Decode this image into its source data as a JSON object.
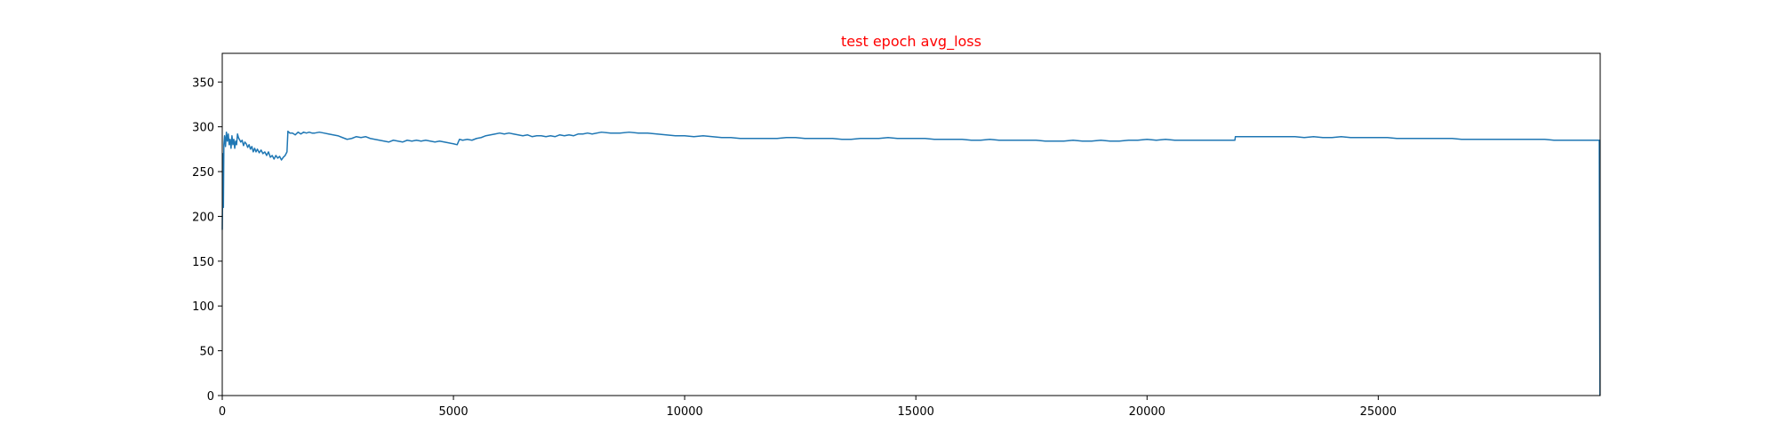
{
  "chart_data": {
    "type": "line",
    "title": "test epoch avg_loss",
    "title_color": "#ff0000",
    "line_color": "#1f77b4",
    "xlabel": "",
    "ylabel": "",
    "xlim": [
      0,
      29800
    ],
    "ylim": [
      0,
      382
    ],
    "xticks": [
      0,
      5000,
      10000,
      15000,
      20000,
      25000
    ],
    "yticks": [
      0,
      50,
      100,
      150,
      200,
      250,
      300,
      350
    ],
    "grid": false,
    "legend": false,
    "series": [
      {
        "values": [
          [
            0,
            185
          ],
          [
            8,
            225
          ],
          [
            15,
            270
          ],
          [
            25,
            210
          ],
          [
            35,
            280
          ],
          [
            50,
            290
          ],
          [
            70,
            278
          ],
          [
            90,
            294
          ],
          [
            110,
            284
          ],
          [
            130,
            292
          ],
          [
            150,
            280
          ],
          [
            170,
            286
          ],
          [
            190,
            276
          ],
          [
            210,
            290
          ],
          [
            230,
            280
          ],
          [
            250,
            286
          ],
          [
            270,
            276
          ],
          [
            290,
            284
          ],
          [
            310,
            280
          ],
          [
            330,
            292
          ],
          [
            350,
            288
          ],
          [
            370,
            286
          ],
          [
            400,
            283
          ],
          [
            430,
            285
          ],
          [
            460,
            279
          ],
          [
            490,
            283
          ],
          [
            520,
            281
          ],
          [
            550,
            277
          ],
          [
            580,
            280
          ],
          [
            610,
            275
          ],
          [
            640,
            278
          ],
          [
            670,
            272
          ],
          [
            700,
            276
          ],
          [
            730,
            272
          ],
          [
            760,
            275
          ],
          [
            800,
            271
          ],
          [
            840,
            274
          ],
          [
            880,
            270
          ],
          [
            920,
            272
          ],
          [
            960,
            268
          ],
          [
            1000,
            272
          ],
          [
            1040,
            266
          ],
          [
            1080,
            268
          ],
          [
            1120,
            264
          ],
          [
            1160,
            268
          ],
          [
            1200,
            265
          ],
          [
            1240,
            267
          ],
          [
            1280,
            263
          ],
          [
            1320,
            266
          ],
          [
            1360,
            268
          ],
          [
            1400,
            272
          ],
          [
            1420,
            295
          ],
          [
            1460,
            293
          ],
          [
            1520,
            293
          ],
          [
            1580,
            291
          ],
          [
            1640,
            294
          ],
          [
            1700,
            292
          ],
          [
            1760,
            294
          ],
          [
            1820,
            293
          ],
          [
            1880,
            294
          ],
          [
            1940,
            293
          ],
          [
            2000,
            293
          ],
          [
            2100,
            294
          ],
          [
            2200,
            293
          ],
          [
            2300,
            292
          ],
          [
            2400,
            291
          ],
          [
            2500,
            290
          ],
          [
            2600,
            288
          ],
          [
            2700,
            286
          ],
          [
            2800,
            287
          ],
          [
            2900,
            289
          ],
          [
            3000,
            288
          ],
          [
            3100,
            289
          ],
          [
            3200,
            287
          ],
          [
            3300,
            286
          ],
          [
            3400,
            285
          ],
          [
            3500,
            284
          ],
          [
            3600,
            283
          ],
          [
            3700,
            285
          ],
          [
            3800,
            284
          ],
          [
            3900,
            283
          ],
          [
            4000,
            285
          ],
          [
            4100,
            284
          ],
          [
            4200,
            285
          ],
          [
            4300,
            284
          ],
          [
            4400,
            285
          ],
          [
            4500,
            284
          ],
          [
            4600,
            283
          ],
          [
            4700,
            284
          ],
          [
            4800,
            283
          ],
          [
            4900,
            282
          ],
          [
            5000,
            281
          ],
          [
            5080,
            280
          ],
          [
            5130,
            286
          ],
          [
            5200,
            285
          ],
          [
            5300,
            286
          ],
          [
            5400,
            285
          ],
          [
            5500,
            287
          ],
          [
            5600,
            288
          ],
          [
            5700,
            290
          ],
          [
            5800,
            291
          ],
          [
            5900,
            292
          ],
          [
            6000,
            293
          ],
          [
            6100,
            292
          ],
          [
            6200,
            293
          ],
          [
            6300,
            292
          ],
          [
            6400,
            291
          ],
          [
            6500,
            290
          ],
          [
            6600,
            291
          ],
          [
            6700,
            289
          ],
          [
            6800,
            290
          ],
          [
            6900,
            290
          ],
          [
            7000,
            289
          ],
          [
            7100,
            290
          ],
          [
            7200,
            289
          ],
          [
            7300,
            291
          ],
          [
            7400,
            290
          ],
          [
            7500,
            291
          ],
          [
            7600,
            290
          ],
          [
            7700,
            292
          ],
          [
            7800,
            292
          ],
          [
            7900,
            293
          ],
          [
            8000,
            292
          ],
          [
            8200,
            294
          ],
          [
            8400,
            293
          ],
          [
            8600,
            293
          ],
          [
            8800,
            294
          ],
          [
            9000,
            293
          ],
          [
            9200,
            293
          ],
          [
            9400,
            292
          ],
          [
            9600,
            291
          ],
          [
            9800,
            290
          ],
          [
            10000,
            290
          ],
          [
            10200,
            289
          ],
          [
            10400,
            290
          ],
          [
            10600,
            289
          ],
          [
            10800,
            288
          ],
          [
            11000,
            288
          ],
          [
            11200,
            287
          ],
          [
            11400,
            287
          ],
          [
            11600,
            287
          ],
          [
            11800,
            287
          ],
          [
            12000,
            287
          ],
          [
            12200,
            288
          ],
          [
            12400,
            288
          ],
          [
            12600,
            287
          ],
          [
            12800,
            287
          ],
          [
            13000,
            287
          ],
          [
            13200,
            287
          ],
          [
            13400,
            286
          ],
          [
            13600,
            286
          ],
          [
            13800,
            287
          ],
          [
            14000,
            287
          ],
          [
            14200,
            287
          ],
          [
            14400,
            288
          ],
          [
            14600,
            287
          ],
          [
            14800,
            287
          ],
          [
            15000,
            287
          ],
          [
            15200,
            287
          ],
          [
            15400,
            286
          ],
          [
            15600,
            286
          ],
          [
            15800,
            286
          ],
          [
            16000,
            286
          ],
          [
            16200,
            285
          ],
          [
            16400,
            285
          ],
          [
            16600,
            286
          ],
          [
            16800,
            285
          ],
          [
            17000,
            285
          ],
          [
            17200,
            285
          ],
          [
            17400,
            285
          ],
          [
            17600,
            285
          ],
          [
            17800,
            284
          ],
          [
            18000,
            284
          ],
          [
            18200,
            284
          ],
          [
            18400,
            285
          ],
          [
            18600,
            284
          ],
          [
            18800,
            284
          ],
          [
            19000,
            285
          ],
          [
            19200,
            284
          ],
          [
            19400,
            284
          ],
          [
            19600,
            285
          ],
          [
            19800,
            285
          ],
          [
            20000,
            286
          ],
          [
            20200,
            285
          ],
          [
            20400,
            286
          ],
          [
            20600,
            285
          ],
          [
            20800,
            285
          ],
          [
            21000,
            285
          ],
          [
            21200,
            285
          ],
          [
            21400,
            285
          ],
          [
            21600,
            285
          ],
          [
            21800,
            285
          ],
          [
            21900,
            285
          ],
          [
            21910,
            289
          ],
          [
            22200,
            289
          ],
          [
            22400,
            289
          ],
          [
            22600,
            289
          ],
          [
            22800,
            289
          ],
          [
            23000,
            289
          ],
          [
            23200,
            289
          ],
          [
            23400,
            288
          ],
          [
            23600,
            289
          ],
          [
            23800,
            288
          ],
          [
            24000,
            288
          ],
          [
            24200,
            289
          ],
          [
            24400,
            288
          ],
          [
            24600,
            288
          ],
          [
            24800,
            288
          ],
          [
            25000,
            288
          ],
          [
            25200,
            288
          ],
          [
            25400,
            287
          ],
          [
            25600,
            287
          ],
          [
            25800,
            287
          ],
          [
            26000,
            287
          ],
          [
            26200,
            287
          ],
          [
            26400,
            287
          ],
          [
            26600,
            287
          ],
          [
            26800,
            286
          ],
          [
            27000,
            286
          ],
          [
            27200,
            286
          ],
          [
            27400,
            286
          ],
          [
            27600,
            286
          ],
          [
            27800,
            286
          ],
          [
            28000,
            286
          ],
          [
            28200,
            286
          ],
          [
            28400,
            286
          ],
          [
            28600,
            286
          ],
          [
            28800,
            285
          ],
          [
            29000,
            285
          ],
          [
            29200,
            285
          ],
          [
            29400,
            285
          ],
          [
            29600,
            285
          ],
          [
            29780,
            285
          ],
          [
            29795,
            0
          ]
        ]
      }
    ]
  }
}
